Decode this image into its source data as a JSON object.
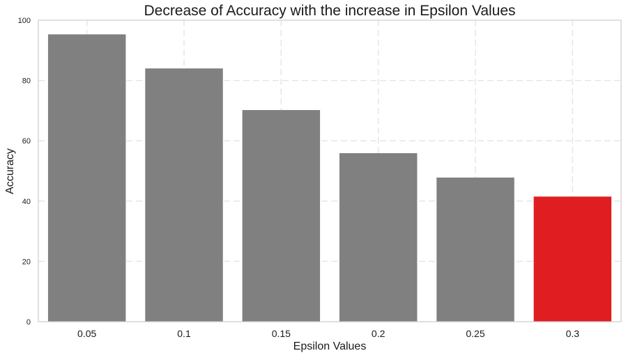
{
  "chart_data": {
    "type": "bar",
    "title": "Decrease of Accuracy with the increase in Epsilon Values",
    "xlabel": "Epsilon Values",
    "ylabel": "Accuracy",
    "categories": [
      "0.05",
      "0.1",
      "0.15",
      "0.2",
      "0.25",
      "0.3"
    ],
    "values": [
      95.3,
      84.0,
      70.2,
      55.9,
      47.8,
      41.5
    ],
    "ylim": [
      0,
      100
    ],
    "yticks": [
      0,
      20,
      40,
      60,
      80,
      100
    ],
    "grid": true,
    "colors": {
      "default": "#808080",
      "highlight": "#e01e22"
    },
    "highlight_index": 5
  }
}
